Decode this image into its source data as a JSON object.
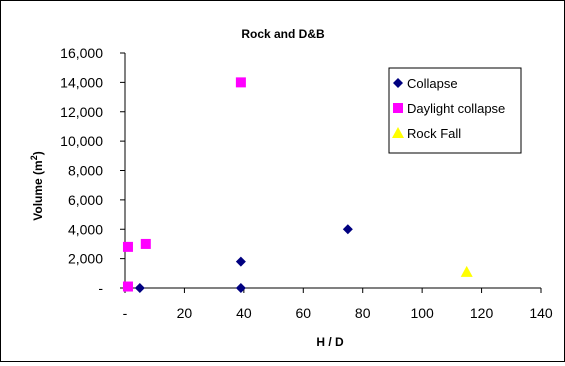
{
  "chart_data": {
    "type": "scatter",
    "title": "Rock and D&B",
    "xlabel": "H / D",
    "ylabel": {
      "text": "Volume (m",
      "sup": "2",
      "close": ")"
    },
    "xlim": [
      0,
      140
    ],
    "ylim": [
      0,
      16000
    ],
    "x_ticks": [
      0,
      20,
      40,
      60,
      80,
      100,
      120,
      140
    ],
    "x_tick_labels": [
      "-",
      "20",
      "40",
      "60",
      "80",
      "100",
      "120",
      "140"
    ],
    "y_ticks": [
      0,
      2000,
      4000,
      6000,
      8000,
      10000,
      12000,
      14000,
      16000
    ],
    "y_tick_labels": [
      "-",
      "2,000",
      "4,000",
      "6,000",
      "8,000",
      "10,000",
      "12,000",
      "14,000",
      "16,000"
    ],
    "grid": false,
    "legend_position": "top-right",
    "series": [
      {
        "name": "Collapse",
        "marker": "diamond",
        "color": "#000080",
        "points": [
          [
            5,
            0
          ],
          [
            39,
            0
          ],
          [
            39,
            1800
          ],
          [
            75,
            4000
          ]
        ]
      },
      {
        "name": "Daylight collapse",
        "marker": "square",
        "color": "#FF00FF",
        "points": [
          [
            1,
            100
          ],
          [
            1,
            2800
          ],
          [
            7,
            3000
          ],
          [
            39,
            14000
          ]
        ]
      },
      {
        "name": "Rock Fall",
        "marker": "triangle",
        "color": "#FFFF00",
        "points": [
          [
            115,
            1100
          ]
        ]
      }
    ]
  }
}
